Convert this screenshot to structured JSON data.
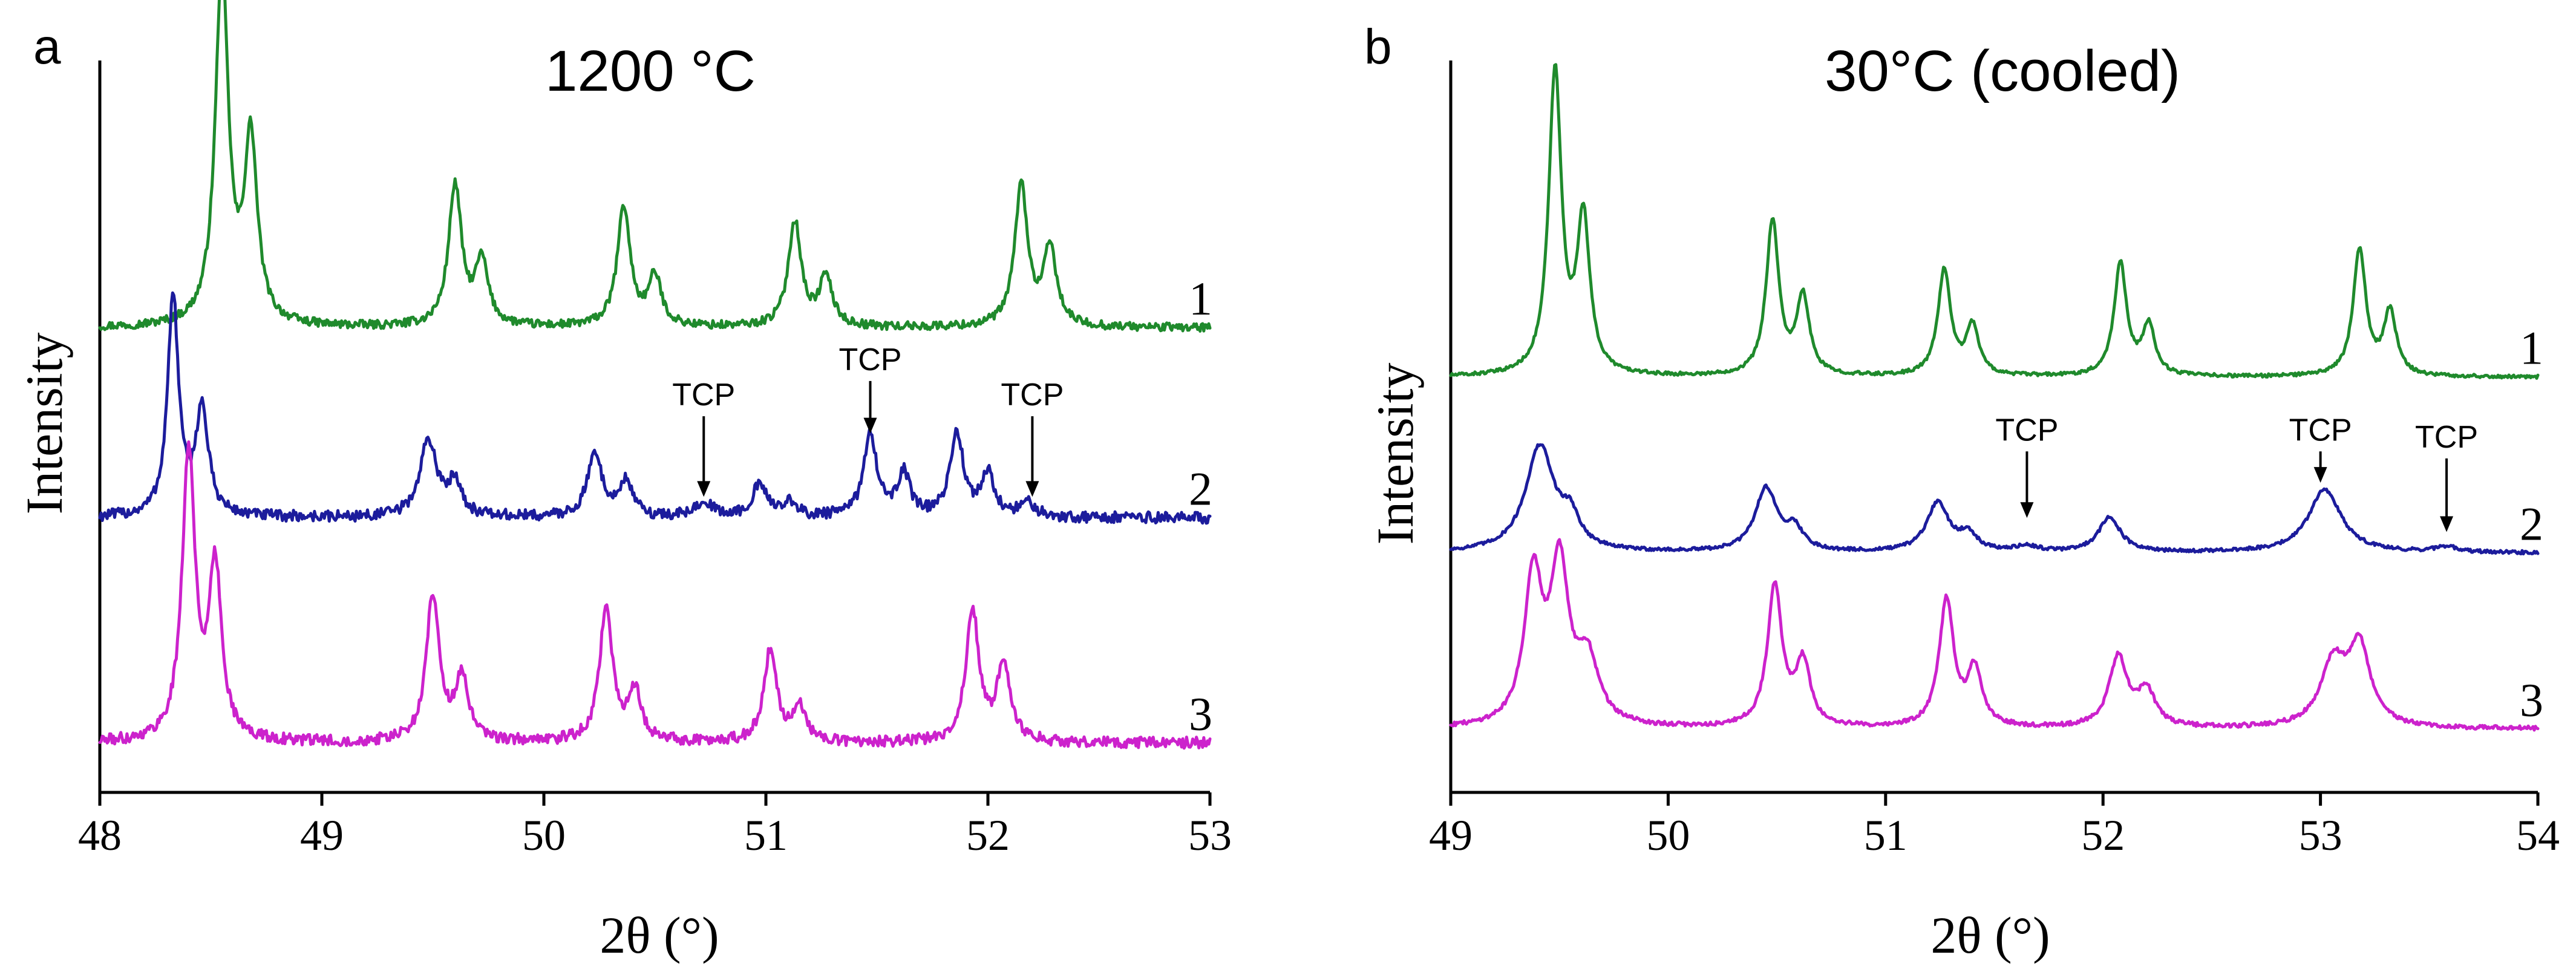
{
  "chart_data": [
    {
      "type": "line",
      "panel_label": "a",
      "title": "1200 °C",
      "xlabel": "2θ (°)",
      "ylabel": "Intensity",
      "xlim": [
        48,
        53
      ],
      "ylim": [
        0,
        5.2
      ],
      "xticks": [
        48,
        49,
        50,
        51,
        52,
        53
      ],
      "yticks_shown": false,
      "series": [
        {
          "name": "1",
          "color": "#1f8a2c",
          "baseline": 3.3,
          "noise": 0.03,
          "peaks": [
            [
              48.55,
              2.55,
              0.035
            ],
            [
              48.68,
              1.3,
              0.035
            ],
            [
              49.6,
              1.0,
              0.035
            ],
            [
              49.72,
              0.45,
              0.035
            ],
            [
              50.36,
              0.85,
              0.035
            ],
            [
              50.5,
              0.35,
              0.035
            ],
            [
              51.13,
              0.75,
              0.035
            ],
            [
              51.27,
              0.35,
              0.035
            ],
            [
              52.15,
              1.0,
              0.035
            ],
            [
              52.28,
              0.55,
              0.035
            ]
          ]
        },
        {
          "name": "2",
          "color": "#1c1c9c",
          "baseline": 1.95,
          "noise": 0.04,
          "peaks": [
            [
              48.33,
              1.55,
              0.03
            ],
            [
              48.46,
              0.75,
              0.035
            ],
            [
              49.48,
              0.55,
              0.045
            ],
            [
              49.6,
              0.25,
              0.035
            ],
            [
              50.23,
              0.45,
              0.04
            ],
            [
              50.37,
              0.25,
              0.035
            ],
            [
              50.72,
              0.12,
              0.04
            ],
            [
              50.97,
              0.22,
              0.04
            ],
            [
              51.1,
              0.1,
              0.04
            ],
            [
              51.47,
              0.6,
              0.035
            ],
            [
              51.62,
              0.3,
              0.035
            ],
            [
              51.86,
              0.6,
              0.035
            ],
            [
              52.0,
              0.3,
              0.035
            ],
            [
              52.18,
              0.1,
              0.04
            ]
          ]
        },
        {
          "name": "3",
          "color": "#cc22cc",
          "baseline": 0.35,
          "noise": 0.04,
          "peaks": [
            [
              48.4,
              2.05,
              0.035
            ],
            [
              48.52,
              1.2,
              0.035
            ],
            [
              49.5,
              1.05,
              0.035
            ],
            [
              49.63,
              0.45,
              0.035
            ],
            [
              50.28,
              0.95,
              0.035
            ],
            [
              50.41,
              0.35,
              0.035
            ],
            [
              51.02,
              0.65,
              0.035
            ],
            [
              51.15,
              0.25,
              0.035
            ],
            [
              51.93,
              0.95,
              0.035
            ],
            [
              52.07,
              0.55,
              0.035
            ]
          ]
        }
      ],
      "annotations": [
        {
          "text": "TCP",
          "x": 50.72,
          "y_text": 2.75,
          "y_tip": 2.1
        },
        {
          "text": "TCP",
          "x": 51.47,
          "y_text": 3.0,
          "y_tip": 2.55
        },
        {
          "text": "TCP",
          "x": 52.2,
          "y_text": 2.75,
          "y_tip": 2.1
        }
      ]
    },
    {
      "type": "line",
      "panel_label": "b",
      "title": "30°C (cooled)",
      "xlabel": "2θ (°)",
      "ylabel": "Intensity",
      "xlim": [
        49,
        54
      ],
      "ylim": [
        0,
        5.2
      ],
      "xticks": [
        49,
        50,
        51,
        52,
        53,
        54
      ],
      "yticks_shown": false,
      "series": [
        {
          "name": "1",
          "color": "#1f8a2c",
          "baseline": 2.95,
          "noise": 0.012,
          "peaks": [
            [
              49.48,
              2.15,
              0.035
            ],
            [
              49.61,
              1.1,
              0.035
            ],
            [
              50.48,
              1.1,
              0.035
            ],
            [
              50.62,
              0.55,
              0.035
            ],
            [
              51.27,
              0.75,
              0.035
            ],
            [
              51.4,
              0.35,
              0.035
            ],
            [
              52.08,
              0.8,
              0.035
            ],
            [
              52.21,
              0.35,
              0.035
            ],
            [
              53.18,
              0.9,
              0.035
            ],
            [
              53.32,
              0.45,
              0.035
            ]
          ]
        },
        {
          "name": "2",
          "color": "#1c1c9c",
          "baseline": 1.7,
          "noise": 0.012,
          "peaks": [
            [
              49.41,
              0.75,
              0.08
            ],
            [
              49.55,
              0.2,
              0.05
            ],
            [
              50.45,
              0.45,
              0.06
            ],
            [
              50.58,
              0.15,
              0.05
            ],
            [
              51.24,
              0.35,
              0.06
            ],
            [
              51.38,
              0.12,
              0.05
            ],
            [
              51.65,
              0.04,
              0.06
            ],
            [
              52.03,
              0.25,
              0.06
            ],
            [
              53.02,
              0.45,
              0.09
            ],
            [
              53.58,
              0.04,
              0.06
            ]
          ]
        },
        {
          "name": "3",
          "color": "#cc22cc",
          "baseline": 0.45,
          "noise": 0.015,
          "peaks": [
            [
              49.38,
              1.05,
              0.05
            ],
            [
              49.5,
              1.1,
              0.05
            ],
            [
              49.63,
              0.45,
              0.06
            ],
            [
              50.49,
              1.0,
              0.04
            ],
            [
              50.62,
              0.45,
              0.04
            ],
            [
              51.28,
              0.9,
              0.04
            ],
            [
              51.41,
              0.4,
              0.04
            ],
            [
              52.07,
              0.5,
              0.05
            ],
            [
              52.2,
              0.25,
              0.05
            ],
            [
              53.06,
              0.45,
              0.07
            ],
            [
              53.18,
              0.55,
              0.06
            ]
          ]
        }
      ],
      "annotations": [
        {
          "text": "TCP",
          "x": 51.65,
          "y_text": 2.5,
          "y_tip": 1.95
        },
        {
          "text": "TCP",
          "x": 53.0,
          "y_text": 2.5,
          "y_tip": 2.2
        },
        {
          "text": "TCP",
          "x": 53.58,
          "y_text": 2.45,
          "y_tip": 1.85
        }
      ]
    }
  ]
}
